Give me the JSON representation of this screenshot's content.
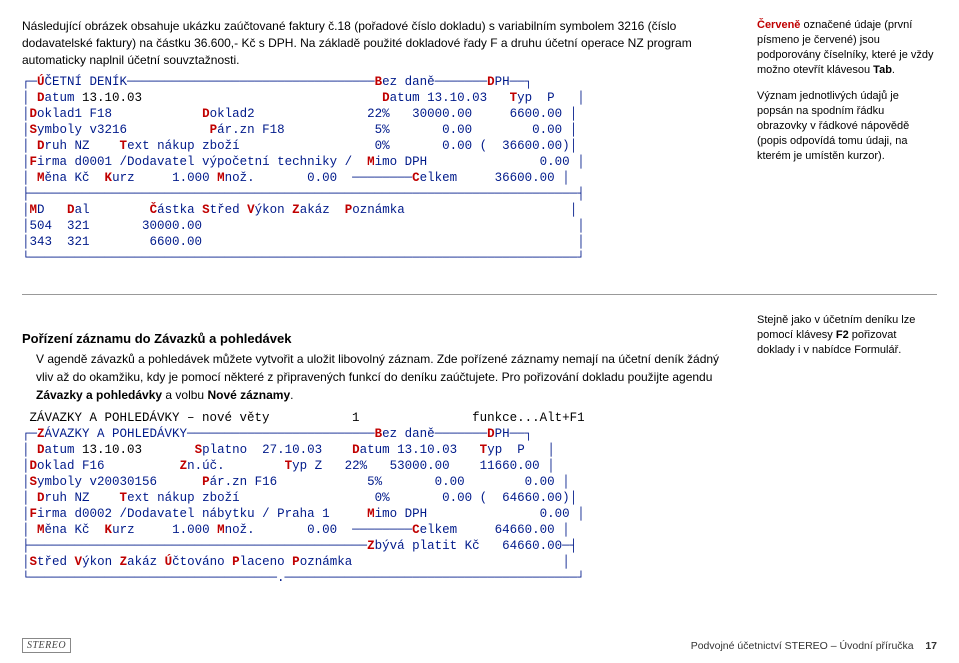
{
  "intro": "Následující obrázek obsahuje ukázku zaúčtované faktury č.18 (pořadové číslo dokladu) s variabilním symbolem 3216 (číslo dodavatelské faktury) na částku 36.600,- Kč s DPH. Na základě použité dokladové řady F a druhu účetní operace NZ program automaticky naplnil účetní souvztažnosti.",
  "sidebar": {
    "note1_pre": "Červeně",
    "note1_rest": " označené údaje (první písmeno je červené) jsou podporovány číselníky, které je vždy možno otevřít klávesou ",
    "note1_key": "Tab",
    "note2": "Význam jednotlivých údajů je popsán na spodním řádku obrazovky v řádkové nápovědě (popis odpovídá tomu údaji, na kterém je umístěn kurzor)."
  },
  "mono1": {
    "colors": {
      "navy": "#001a8a",
      "red": "#c00000",
      "bg": "#ffffff"
    },
    "fontsize": 12.5,
    "lines": [
      [
        [
          "navy",
          "┌─"
        ],
        [
          "red",
          "Ú"
        ],
        [
          "navy",
          "ČETNÍ DENÍK─────────────────────────────────"
        ],
        [
          "red",
          "B"
        ],
        [
          "navy",
          "ez daně───────"
        ],
        [
          "red",
          "D"
        ],
        [
          "navy",
          "PH──┐"
        ]
      ],
      [
        [
          "navy",
          "│ "
        ],
        [
          "red",
          "D"
        ],
        [
          "navy",
          "atum "
        ],
        [
          "dk",
          "13.10.03"
        ],
        [
          "navy",
          "                                "
        ],
        [
          "red",
          "D"
        ],
        [
          "navy",
          "atum 13.10.03   "
        ],
        [
          "red",
          "T"
        ],
        [
          "navy",
          "yp  P   │"
        ]
      ],
      [
        [
          "navy",
          "│"
        ],
        [
          "red",
          "D"
        ],
        [
          "navy",
          "oklad1 F18            "
        ],
        [
          "red",
          "D"
        ],
        [
          "navy",
          "oklad2               22%   30000.00     6600.00 │"
        ]
      ],
      [
        [
          "navy",
          "│"
        ],
        [
          "red",
          "S"
        ],
        [
          "navy",
          "ymboly v3216           "
        ],
        [
          "red",
          "P"
        ],
        [
          "navy",
          "ár.zn F18            5%       0.00        0.00 │"
        ]
      ],
      [
        [
          "navy",
          "│ "
        ],
        [
          "red",
          "D"
        ],
        [
          "navy",
          "ruh NZ    "
        ],
        [
          "red",
          "T"
        ],
        [
          "navy",
          "ext nákup zboží                  0%       0.00 (  36600.00)│"
        ]
      ],
      [
        [
          "navy",
          "│"
        ],
        [
          "red",
          "F"
        ],
        [
          "navy",
          "irma d0001 /Dodavatel výpočetní techniky /  "
        ],
        [
          "red",
          "M"
        ],
        [
          "navy",
          "imo DPH               0.00 │"
        ]
      ],
      [
        [
          "navy",
          "│ "
        ],
        [
          "red",
          "M"
        ],
        [
          "navy",
          "ěna Kč  "
        ],
        [
          "red",
          "K"
        ],
        [
          "navy",
          "urz     1.000 "
        ],
        [
          "red",
          "M"
        ],
        [
          "navy",
          "nož.       0.00  ────────"
        ],
        [
          "red",
          "C"
        ],
        [
          "navy",
          "elkem     36600.00 │"
        ]
      ],
      [
        [
          "navy",
          "├─────────────────────────────────────────────────────────────────────────┤"
        ]
      ],
      [
        [
          "navy",
          "│"
        ],
        [
          "red",
          "M"
        ],
        [
          "navy",
          "D   "
        ],
        [
          "red",
          "D"
        ],
        [
          "navy",
          "al        "
        ],
        [
          "red",
          "Č"
        ],
        [
          "navy",
          "ástka "
        ],
        [
          "red",
          "S"
        ],
        [
          "navy",
          "třed "
        ],
        [
          "red",
          "V"
        ],
        [
          "navy",
          "ýkon "
        ],
        [
          "red",
          "Z"
        ],
        [
          "navy",
          "akáz  "
        ],
        [
          "red",
          "P"
        ],
        [
          "navy",
          "oznámka                      │"
        ]
      ],
      [
        [
          "navy",
          "│504  321       30000.00                                                  │"
        ]
      ],
      [
        [
          "navy",
          "│343  321        6600.00                                                  │"
        ]
      ],
      [
        [
          "navy",
          "└─────────────────────────────────────────────────────────────────────────┘"
        ]
      ]
    ]
  },
  "section2": {
    "heading": "Pořízení záznamu do Závazků a pohledávek",
    "para": "V agendě závazků a pohledávek můžete vytvořit a uložit libovolný záznam. Zde pořízené záznamy nemají na účetní deník žádný vliv až do okamžiku, kdy je pomocí některé z připravených funkcí do deníku zaúčtujete. Pro pořizování dokladu použijte agendu ",
    "bold1": "Závazky a pohledávky",
    "mid": " a volbu ",
    "bold2": "Nové záznamy",
    "end": ".",
    "side_pre": "Stejně jako v účetním deníku lze pomocí klávesy ",
    "side_key": "F2",
    "side_post": " pořizovat doklady i v nabídce Formulář."
  },
  "mono2": {
    "colors": {
      "navy": "#001a8a",
      "red": "#c00000"
    },
    "fontsize": 12.5,
    "lines": [
      " ZÁVAZKY A POHLEDÁVKY – nové věty           1               funkce...Alt+F1 ",
      [
        [
          "navy",
          "┌─"
        ],
        [
          "red",
          "Z"
        ],
        [
          "navy",
          "ÁVAZKY A POHLEDÁVKY─────────────────────────"
        ],
        [
          "red",
          "B"
        ],
        [
          "navy",
          "ez daně───────"
        ],
        [
          "red",
          "D"
        ],
        [
          "navy",
          "PH──┐"
        ]
      ],
      [
        [
          "navy",
          "│ "
        ],
        [
          "red",
          "D"
        ],
        [
          "navy",
          "atum "
        ],
        [
          "dk",
          "13.10.03"
        ],
        [
          "navy",
          "       "
        ],
        [
          "red",
          "S"
        ],
        [
          "navy",
          "platno  27.10.03    "
        ],
        [
          "red",
          "D"
        ],
        [
          "navy",
          "atum 13.10.03   "
        ],
        [
          "red",
          "T"
        ],
        [
          "navy",
          "yp  P   │"
        ]
      ],
      [
        [
          "navy",
          "│"
        ],
        [
          "red",
          "D"
        ],
        [
          "navy",
          "oklad F16          "
        ],
        [
          "red",
          "Z"
        ],
        [
          "navy",
          "n.úč.        "
        ],
        [
          "red",
          "T"
        ],
        [
          "navy",
          "yp Z   22%   53000.00    11660.00 │"
        ]
      ],
      [
        [
          "navy",
          "│"
        ],
        [
          "red",
          "S"
        ],
        [
          "navy",
          "ymboly v20030156      "
        ],
        [
          "red",
          "P"
        ],
        [
          "navy",
          "ár.zn F16            5%       0.00        0.00 │"
        ]
      ],
      [
        [
          "navy",
          "│ "
        ],
        [
          "red",
          "D"
        ],
        [
          "navy",
          "ruh NZ    "
        ],
        [
          "red",
          "T"
        ],
        [
          "navy",
          "ext nákup zboží                  0%       0.00 (  64660.00)│"
        ]
      ],
      [
        [
          "navy",
          "│"
        ],
        [
          "red",
          "F"
        ],
        [
          "navy",
          "irma d0002 /Dodavatel nábytku / Praha 1     "
        ],
        [
          "red",
          "M"
        ],
        [
          "navy",
          "imo DPH               0.00 │"
        ]
      ],
      [
        [
          "navy",
          "│ "
        ],
        [
          "red",
          "M"
        ],
        [
          "navy",
          "ěna Kč  "
        ],
        [
          "red",
          "K"
        ],
        [
          "navy",
          "urz     1.000 "
        ],
        [
          "red",
          "M"
        ],
        [
          "navy",
          "nož.       0.00  ────────"
        ],
        [
          "red",
          "C"
        ],
        [
          "navy",
          "elkem     64660.00 │"
        ]
      ],
      [
        [
          "navy",
          "├─────────────────────────────────────────────"
        ],
        [
          "red",
          "Z"
        ],
        [
          "navy",
          "bývá platit Kč   64660.00─┤"
        ]
      ],
      [
        [
          "navy",
          "│"
        ],
        [
          "red",
          "S"
        ],
        [
          "navy",
          "třed "
        ],
        [
          "red",
          "V"
        ],
        [
          "navy",
          "ýkon "
        ],
        [
          "red",
          "Z"
        ],
        [
          "navy",
          "akáz "
        ],
        [
          "red",
          "Ú"
        ],
        [
          "navy",
          "čtováno "
        ],
        [
          "red",
          "P"
        ],
        [
          "navy",
          "laceno "
        ],
        [
          "red",
          "P"
        ],
        [
          "navy",
          "oznámka                            │"
        ]
      ],
      [
        [
          "navy",
          "└─────────────────────────────────.───────────────────────────────────────┘"
        ]
      ]
    ]
  },
  "footer": {
    "brand": "STEREO",
    "title": "Podvojné účetnictví STEREO – Úvodní příručka",
    "page": "17"
  }
}
